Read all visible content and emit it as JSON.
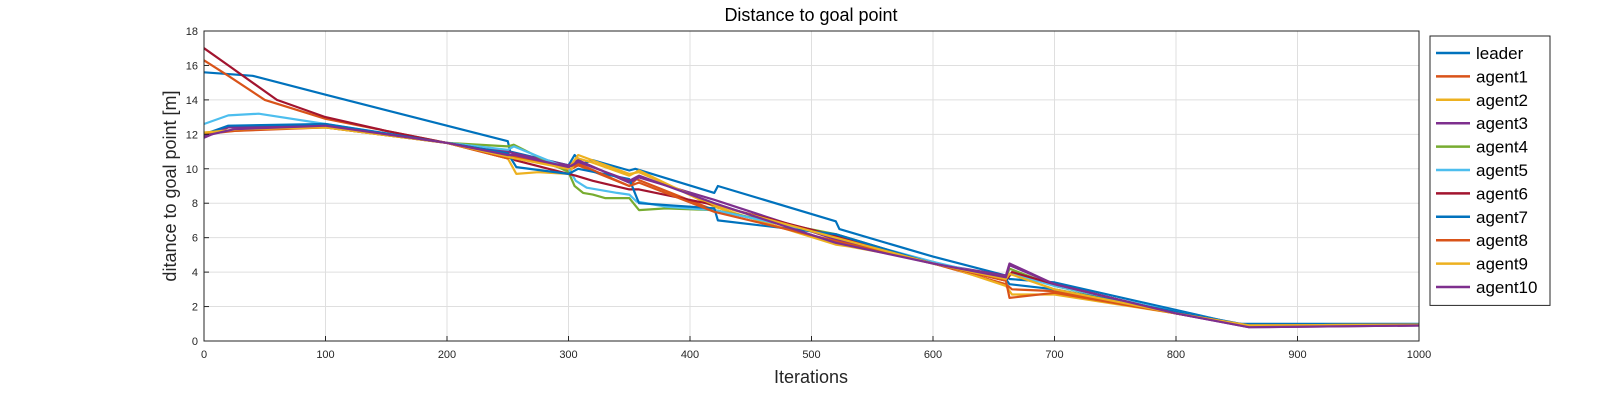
{
  "chart_data": {
    "type": "line",
    "title": "Distance to goal point",
    "xlabel": "Iterations",
    "ylabel": "ditance to goal point [m]",
    "xlim": [
      0,
      1000
    ],
    "ylim": [
      0,
      18
    ],
    "xticks": [
      0,
      100,
      200,
      300,
      400,
      500,
      600,
      700,
      800,
      900,
      1000
    ],
    "yticks": [
      0,
      2,
      4,
      6,
      8,
      10,
      12,
      14,
      16,
      18
    ],
    "grid": true,
    "legend": "outside-right",
    "series": [
      {
        "name": "leader",
        "color": "#0072BD",
        "points": [
          [
            0,
            15.6
          ],
          [
            40,
            15.4
          ],
          [
            100,
            14.3
          ],
          [
            200,
            12.5
          ],
          [
            250,
            11.6
          ],
          [
            252,
            11.0
          ],
          [
            300,
            10.2
          ],
          [
            305,
            10.8
          ],
          [
            312,
            10.3
          ],
          [
            320,
            10.5
          ],
          [
            350,
            9.9
          ],
          [
            355,
            10.0
          ],
          [
            420,
            8.6
          ],
          [
            423,
            9.0
          ],
          [
            520,
            6.95
          ],
          [
            523,
            6.5
          ],
          [
            600,
            4.9
          ],
          [
            660,
            3.8
          ],
          [
            663,
            3.6
          ],
          [
            700,
            3.4
          ],
          [
            800,
            1.8
          ],
          [
            850,
            1.0
          ],
          [
            900,
            1.0
          ],
          [
            1000,
            1.0
          ]
        ]
      },
      {
        "name": "agent1",
        "color": "#D95319",
        "points": [
          [
            0,
            16.3
          ],
          [
            20,
            15.4
          ],
          [
            50,
            14.0
          ],
          [
            100,
            12.9
          ],
          [
            150,
            12.2
          ],
          [
            200,
            11.5
          ],
          [
            250,
            10.6
          ],
          [
            255,
            10.9
          ],
          [
            300,
            9.9
          ],
          [
            308,
            10.2
          ],
          [
            350,
            9.0
          ],
          [
            356,
            9.4
          ],
          [
            420,
            7.6
          ],
          [
            520,
            6.1
          ],
          [
            600,
            4.5
          ],
          [
            660,
            3.3
          ],
          [
            665,
            3.0
          ],
          [
            700,
            2.9
          ],
          [
            800,
            1.6
          ],
          [
            860,
            0.9
          ],
          [
            1000,
            0.95
          ]
        ]
      },
      {
        "name": "agent2",
        "color": "#EDB120",
        "points": [
          [
            0,
            12.1
          ],
          [
            50,
            12.3
          ],
          [
            100,
            12.4
          ],
          [
            200,
            11.5
          ],
          [
            250,
            10.6
          ],
          [
            257,
            9.7
          ],
          [
            275,
            9.8
          ],
          [
            300,
            9.7
          ],
          [
            308,
            10.6
          ],
          [
            318,
            10.4
          ],
          [
            350,
            9.6
          ],
          [
            358,
            9.9
          ],
          [
            420,
            7.8
          ],
          [
            520,
            5.6
          ],
          [
            530,
            5.5
          ],
          [
            600,
            4.6
          ],
          [
            660,
            3.2
          ],
          [
            665,
            2.7
          ],
          [
            700,
            2.7
          ],
          [
            800,
            1.6
          ],
          [
            860,
            0.9
          ],
          [
            1000,
            0.95
          ]
        ]
      },
      {
        "name": "agent3",
        "color": "#7E2F8E",
        "points": [
          [
            0,
            11.8
          ],
          [
            20,
            12.4
          ],
          [
            100,
            12.5
          ],
          [
            200,
            11.5
          ],
          [
            250,
            11.0
          ],
          [
            255,
            10.9
          ],
          [
            300,
            10.2
          ],
          [
            308,
            10.5
          ],
          [
            350,
            9.2
          ],
          [
            358,
            9.5
          ],
          [
            420,
            8.2
          ],
          [
            520,
            5.9
          ],
          [
            600,
            4.5
          ],
          [
            660,
            3.8
          ],
          [
            663,
            4.5
          ],
          [
            700,
            3.3
          ],
          [
            800,
            1.6
          ],
          [
            860,
            0.8
          ],
          [
            1000,
            0.9
          ]
        ]
      },
      {
        "name": "agent4",
        "color": "#77AC30",
        "points": [
          [
            0,
            12.0
          ],
          [
            30,
            12.3
          ],
          [
            100,
            12.4
          ],
          [
            200,
            11.5
          ],
          [
            250,
            11.3
          ],
          [
            255,
            11.4
          ],
          [
            300,
            9.8
          ],
          [
            305,
            9.0
          ],
          [
            312,
            8.6
          ],
          [
            320,
            8.5
          ],
          [
            330,
            8.3
          ],
          [
            350,
            8.3
          ],
          [
            358,
            7.6
          ],
          [
            380,
            7.7
          ],
          [
            420,
            7.6
          ],
          [
            520,
            6.2
          ],
          [
            600,
            4.5
          ],
          [
            660,
            3.7
          ],
          [
            663,
            4.2
          ],
          [
            700,
            3.2
          ],
          [
            800,
            1.6
          ],
          [
            860,
            0.9
          ],
          [
            1000,
            0.95
          ]
        ]
      },
      {
        "name": "agent5",
        "color": "#4DBEEE",
        "points": [
          [
            0,
            12.6
          ],
          [
            20,
            13.1
          ],
          [
            45,
            13.2
          ],
          [
            100,
            12.6
          ],
          [
            200,
            11.5
          ],
          [
            250,
            11.1
          ],
          [
            255,
            11.3
          ],
          [
            300,
            10.0
          ],
          [
            306,
            9.3
          ],
          [
            315,
            8.9
          ],
          [
            340,
            8.6
          ],
          [
            350,
            8.5
          ],
          [
            356,
            8.1
          ],
          [
            380,
            7.8
          ],
          [
            420,
            7.6
          ],
          [
            520,
            6.1
          ],
          [
            600,
            4.6
          ],
          [
            660,
            3.6
          ],
          [
            665,
            3.9
          ],
          [
            700,
            3.2
          ],
          [
            800,
            1.7
          ],
          [
            860,
            0.9
          ],
          [
            1000,
            0.95
          ]
        ]
      },
      {
        "name": "agent6",
        "color": "#A2142F",
        "points": [
          [
            0,
            17.0
          ],
          [
            20,
            16.0
          ],
          [
            60,
            14.0
          ],
          [
            100,
            13.0
          ],
          [
            150,
            12.2
          ],
          [
            200,
            11.5
          ],
          [
            250,
            10.9
          ],
          [
            256,
            10.5
          ],
          [
            300,
            9.7
          ],
          [
            306,
            9.6
          ],
          [
            320,
            9.3
          ],
          [
            350,
            8.8
          ],
          [
            358,
            8.8
          ],
          [
            420,
            7.9
          ],
          [
            520,
            6.1
          ],
          [
            600,
            4.5
          ],
          [
            660,
            3.5
          ],
          [
            665,
            4.0
          ],
          [
            700,
            3.3
          ],
          [
            800,
            1.6
          ],
          [
            860,
            0.85
          ],
          [
            1000,
            0.95
          ]
        ]
      },
      {
        "name": "agent7",
        "color": "#0072BD",
        "points": [
          [
            0,
            12.0
          ],
          [
            20,
            12.5
          ],
          [
            100,
            12.6
          ],
          [
            200,
            11.5
          ],
          [
            250,
            10.9
          ],
          [
            257,
            10.1
          ],
          [
            300,
            9.7
          ],
          [
            308,
            10.0
          ],
          [
            350,
            9.4
          ],
          [
            358,
            8.0
          ],
          [
            420,
            7.7
          ],
          [
            423,
            7.0
          ],
          [
            520,
            6.2
          ],
          [
            600,
            4.5
          ],
          [
            660,
            3.6
          ],
          [
            663,
            3.3
          ],
          [
            700,
            3.0
          ],
          [
            800,
            1.7
          ],
          [
            860,
            0.9
          ],
          [
            1000,
            0.95
          ]
        ]
      },
      {
        "name": "agent8",
        "color": "#D95319",
        "points": [
          [
            0,
            12.0
          ],
          [
            25,
            12.2
          ],
          [
            100,
            12.4
          ],
          [
            200,
            11.5
          ],
          [
            250,
            10.6
          ],
          [
            255,
            10.7
          ],
          [
            300,
            10.1
          ],
          [
            308,
            10.3
          ],
          [
            350,
            9.0
          ],
          [
            358,
            9.2
          ],
          [
            420,
            7.5
          ],
          [
            520,
            5.8
          ],
          [
            600,
            4.5
          ],
          [
            660,
            3.5
          ],
          [
            663,
            2.5
          ],
          [
            700,
            2.8
          ],
          [
            800,
            1.6
          ],
          [
            860,
            0.9
          ],
          [
            1000,
            0.95
          ]
        ]
      },
      {
        "name": "agent9",
        "color": "#EDB120",
        "points": [
          [
            0,
            12.1
          ],
          [
            30,
            12.3
          ],
          [
            100,
            12.4
          ],
          [
            200,
            11.5
          ],
          [
            250,
            10.7
          ],
          [
            256,
            10.6
          ],
          [
            300,
            10.0
          ],
          [
            308,
            10.8
          ],
          [
            350,
            9.7
          ],
          [
            358,
            9.8
          ],
          [
            420,
            7.9
          ],
          [
            520,
            6.0
          ],
          [
            600,
            4.5
          ],
          [
            660,
            3.6
          ],
          [
            663,
            3.9
          ],
          [
            700,
            3.0
          ],
          [
            800,
            1.6
          ],
          [
            860,
            0.9
          ],
          [
            1000,
            0.95
          ]
        ]
      },
      {
        "name": "agent10",
        "color": "#7E2F8E",
        "points": [
          [
            0,
            11.9
          ],
          [
            25,
            12.3
          ],
          [
            100,
            12.5
          ],
          [
            200,
            11.5
          ],
          [
            250,
            10.8
          ],
          [
            256,
            10.8
          ],
          [
            300,
            10.1
          ],
          [
            308,
            10.4
          ],
          [
            350,
            9.3
          ],
          [
            358,
            9.6
          ],
          [
            420,
            8.0
          ],
          [
            520,
            5.7
          ],
          [
            600,
            4.5
          ],
          [
            660,
            3.7
          ],
          [
            663,
            4.4
          ],
          [
            700,
            3.3
          ],
          [
            800,
            1.6
          ],
          [
            860,
            0.8
          ],
          [
            1000,
            0.9
          ]
        ]
      }
    ]
  }
}
